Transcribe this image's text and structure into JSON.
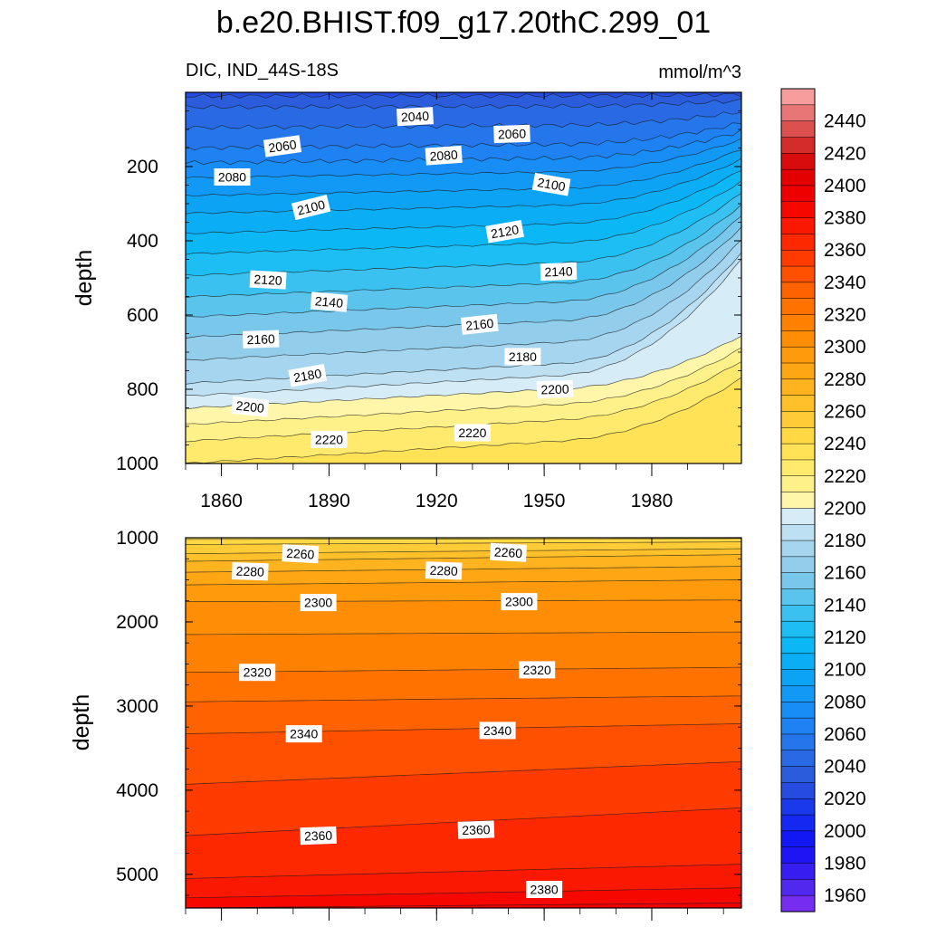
{
  "chart_data": {
    "type": "contour",
    "title": "b.e20.BHIST.f09_g17.20thC.299_01",
    "left_subtitle": "DIC, IND_44S-18S",
    "right_subtitle": "mmol/m^3",
    "xlabel": "",
    "xlim": [
      1850,
      2005
    ],
    "x_ticks": [
      1860,
      1890,
      1920,
      1950,
      1980
    ],
    "x_tick_labels": [
      "1860",
      "1890",
      "1920",
      "1950",
      "1980"
    ],
    "panels": [
      {
        "name": "upper",
        "ylabel": "depth",
        "ylim": [
          0,
          1000
        ],
        "y_ticks": [
          200,
          400,
          600,
          800,
          1000
        ],
        "y_tick_labels": [
          "200",
          "400",
          "600",
          "800",
          "1000"
        ],
        "contour_interval": 10,
        "contour_labels": [
          {
            "text": "2040",
            "x": 1914,
            "y": 65,
            "angle": -3
          },
          {
            "text": "2060",
            "x": 1877,
            "y": 145,
            "angle": -8
          },
          {
            "text": "2060",
            "x": 1941,
            "y": 112,
            "angle": -2
          },
          {
            "text": "2080",
            "x": 1863,
            "y": 228,
            "angle": 0
          },
          {
            "text": "2080",
            "x": 1922,
            "y": 170,
            "angle": -4
          },
          {
            "text": "2100",
            "x": 1885,
            "y": 310,
            "angle": -14
          },
          {
            "text": "2100",
            "x": 1952,
            "y": 248,
            "angle": 10
          },
          {
            "text": "2120",
            "x": 1873,
            "y": 505,
            "angle": 3
          },
          {
            "text": "2120",
            "x": 1939,
            "y": 375,
            "angle": -10
          },
          {
            "text": "2140",
            "x": 1890,
            "y": 565,
            "angle": 5
          },
          {
            "text": "2140",
            "x": 1954,
            "y": 483,
            "angle": -2
          },
          {
            "text": "2160",
            "x": 1871,
            "y": 665,
            "angle": -2
          },
          {
            "text": "2160",
            "x": 1932,
            "y": 625,
            "angle": -6
          },
          {
            "text": "2180",
            "x": 1884,
            "y": 763,
            "angle": -10
          },
          {
            "text": "2180",
            "x": 1944,
            "y": 712,
            "angle": 0
          },
          {
            "text": "2200",
            "x": 1868,
            "y": 847,
            "angle": 6
          },
          {
            "text": "2200",
            "x": 1953,
            "y": 800,
            "angle": -2
          },
          {
            "text": "2220",
            "x": 1890,
            "y": 935,
            "angle": 0
          },
          {
            "text": "2220",
            "x": 1930,
            "y": 917,
            "angle": 0
          }
        ]
      },
      {
        "name": "lower",
        "ylabel": "depth",
        "ylim": [
          1000,
          5400
        ],
        "y_ticks": [
          1000,
          2000,
          3000,
          4000,
          5000
        ],
        "y_tick_labels": [
          "1000",
          "2000",
          "3000",
          "4000",
          "5000"
        ],
        "contour_interval": 10,
        "contour_labels": [
          {
            "text": "2260",
            "x": 1882,
            "y": 1190,
            "angle": 3
          },
          {
            "text": "2260",
            "x": 1940,
            "y": 1175,
            "angle": 3
          },
          {
            "text": "2280",
            "x": 1868,
            "y": 1400,
            "angle": 2
          },
          {
            "text": "2280",
            "x": 1922,
            "y": 1390,
            "angle": 2
          },
          {
            "text": "2300",
            "x": 1887,
            "y": 1770,
            "angle": 0
          },
          {
            "text": "2300",
            "x": 1943,
            "y": 1760,
            "angle": 0
          },
          {
            "text": "2320",
            "x": 1870,
            "y": 2600,
            "angle": 0
          },
          {
            "text": "2320",
            "x": 1948,
            "y": 2570,
            "angle": 0
          },
          {
            "text": "2340",
            "x": 1883,
            "y": 3330,
            "angle": 0
          },
          {
            "text": "2340",
            "x": 1937,
            "y": 3290,
            "angle": 0
          },
          {
            "text": "2360",
            "x": 1887,
            "y": 4540,
            "angle": -2
          },
          {
            "text": "2360",
            "x": 1931,
            "y": 4470,
            "angle": -2
          },
          {
            "text": "2380",
            "x": 1950,
            "y": 5180,
            "angle": 0
          }
        ]
      }
    ],
    "colorbar": {
      "min": 1950,
      "max": 2460,
      "step": 10,
      "labels": [
        "2440",
        "2420",
        "2400",
        "2380",
        "2360",
        "2340",
        "2320",
        "2300",
        "2280",
        "2260",
        "2240",
        "2220",
        "2200",
        "2180",
        "2160",
        "2140",
        "2120",
        "2100",
        "2080",
        "2060",
        "2040",
        "2020",
        "2000",
        "1980",
        "1960"
      ],
      "anchor_colors": [
        [
          1950,
          "#8a30f0"
        ],
        [
          1965,
          "#5028ee"
        ],
        [
          1990,
          "#1010f5"
        ],
        [
          2010,
          "#1530f0"
        ],
        [
          2030,
          "#2a55d8"
        ],
        [
          2050,
          "#2870e8"
        ],
        [
          2070,
          "#1a88f5"
        ],
        [
          2100,
          "#0aa8f5"
        ],
        [
          2120,
          "#0cbcf5"
        ],
        [
          2140,
          "#4ac2ee"
        ],
        [
          2160,
          "#88c8ea"
        ],
        [
          2180,
          "#b0daf0"
        ],
        [
          2195,
          "#d6ecf6"
        ],
        [
          2200,
          "#fff8b8"
        ],
        [
          2220,
          "#ffee7a"
        ],
        [
          2240,
          "#ffde4a"
        ],
        [
          2260,
          "#ffc630"
        ],
        [
          2280,
          "#ffac18"
        ],
        [
          2300,
          "#ff9408"
        ],
        [
          2320,
          "#ff7a00"
        ],
        [
          2340,
          "#ff5a00"
        ],
        [
          2360,
          "#ff3000"
        ],
        [
          2390,
          "#f40000"
        ],
        [
          2410,
          "#e00000"
        ],
        [
          2420,
          "#d01818"
        ],
        [
          2440,
          "#e06262"
        ],
        [
          2460,
          "#ffb0b0"
        ]
      ]
    }
  }
}
